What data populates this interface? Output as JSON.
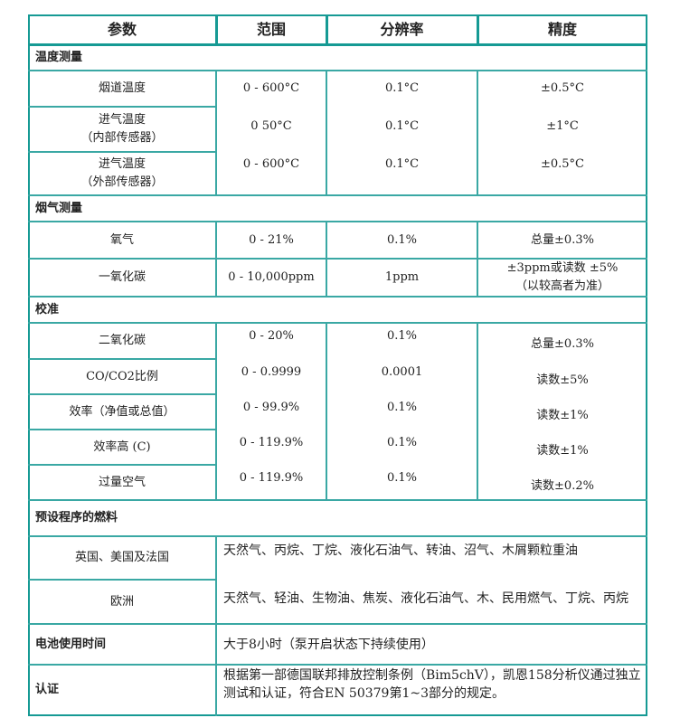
{
  "header": [
    "参数",
    "范围",
    "分辨率",
    "精度"
  ],
  "sections": {
    "temp": "温度测量",
    "flue": "烟气测量",
    "calib": "校准",
    "fuels": "预设程序的燃料",
    "battery": "电池使用时间",
    "cert": "认证"
  },
  "temp_rows": [
    {
      "p": "烟道温度",
      "r": "0 - 600°C",
      "res": "0.1°C",
      "acc": "±0.5°C"
    },
    {
      "p": "进气温度",
      "p2": "（内部传感器）",
      "r": "0 50°C",
      "res": "0.1°C",
      "acc": "±1°C"
    },
    {
      "p": "进气温度",
      "p2": "（外部传感器）",
      "r": "0 - 600°C",
      "res": "0.1°C",
      "acc": "±0.5°C"
    }
  ],
  "flue_rows": [
    {
      "p": "氧气",
      "r": "0 - 21%",
      "res": "0.1%",
      "acc": "总量±0.3%"
    },
    {
      "p": "一氧化碳",
      "r": "0 - 10,000ppm",
      "res": "1ppm",
      "acc": "±3ppm或读数 ±5%",
      "acc2": "（以较高者为准）"
    }
  ],
  "calib_rows": [
    {
      "p": "二氧化碳",
      "r": "0 - 20%",
      "res": "0.1%",
      "acc": "总量±0.3%"
    },
    {
      "p": "CO/CO2比例",
      "r": "0 - 0.9999",
      "res": "0.0001",
      "acc": "读数±5%"
    },
    {
      "p": "效率（净值或总值）",
      "r": "0 - 99.9%",
      "res": "0.1%",
      "acc": "读数±1%"
    },
    {
      "p": "效率高 (C)",
      "r": "0 - 119.9%",
      "res": "0.1%",
      "acc": "读数±1%"
    },
    {
      "p": "过量空气",
      "r": "0 - 119.9%",
      "res": "0.1%",
      "acc": "读数±0.2%"
    }
  ],
  "fuels": [
    {
      "region": "英国、美国及法国",
      "list": "天然气、丙烷、丁烷、液化石油气、转油、沼气、木屑颗粒重油"
    },
    {
      "region": "欧洲",
      "list": "天然气、轻油、生物油、焦炭、液化石油气、木、民用燃气、丁烷、丙烷"
    }
  ],
  "battery": "大于8小时（泵开启状态下持续使用）",
  "cert": "根据第一部德国联邦排放控制条例（Bim5chV），凯恩158分析仪通过独立测试和认证，符合EN 50379第1~3部分的规定。",
  "colors": {
    "border": "#169a94"
  }
}
